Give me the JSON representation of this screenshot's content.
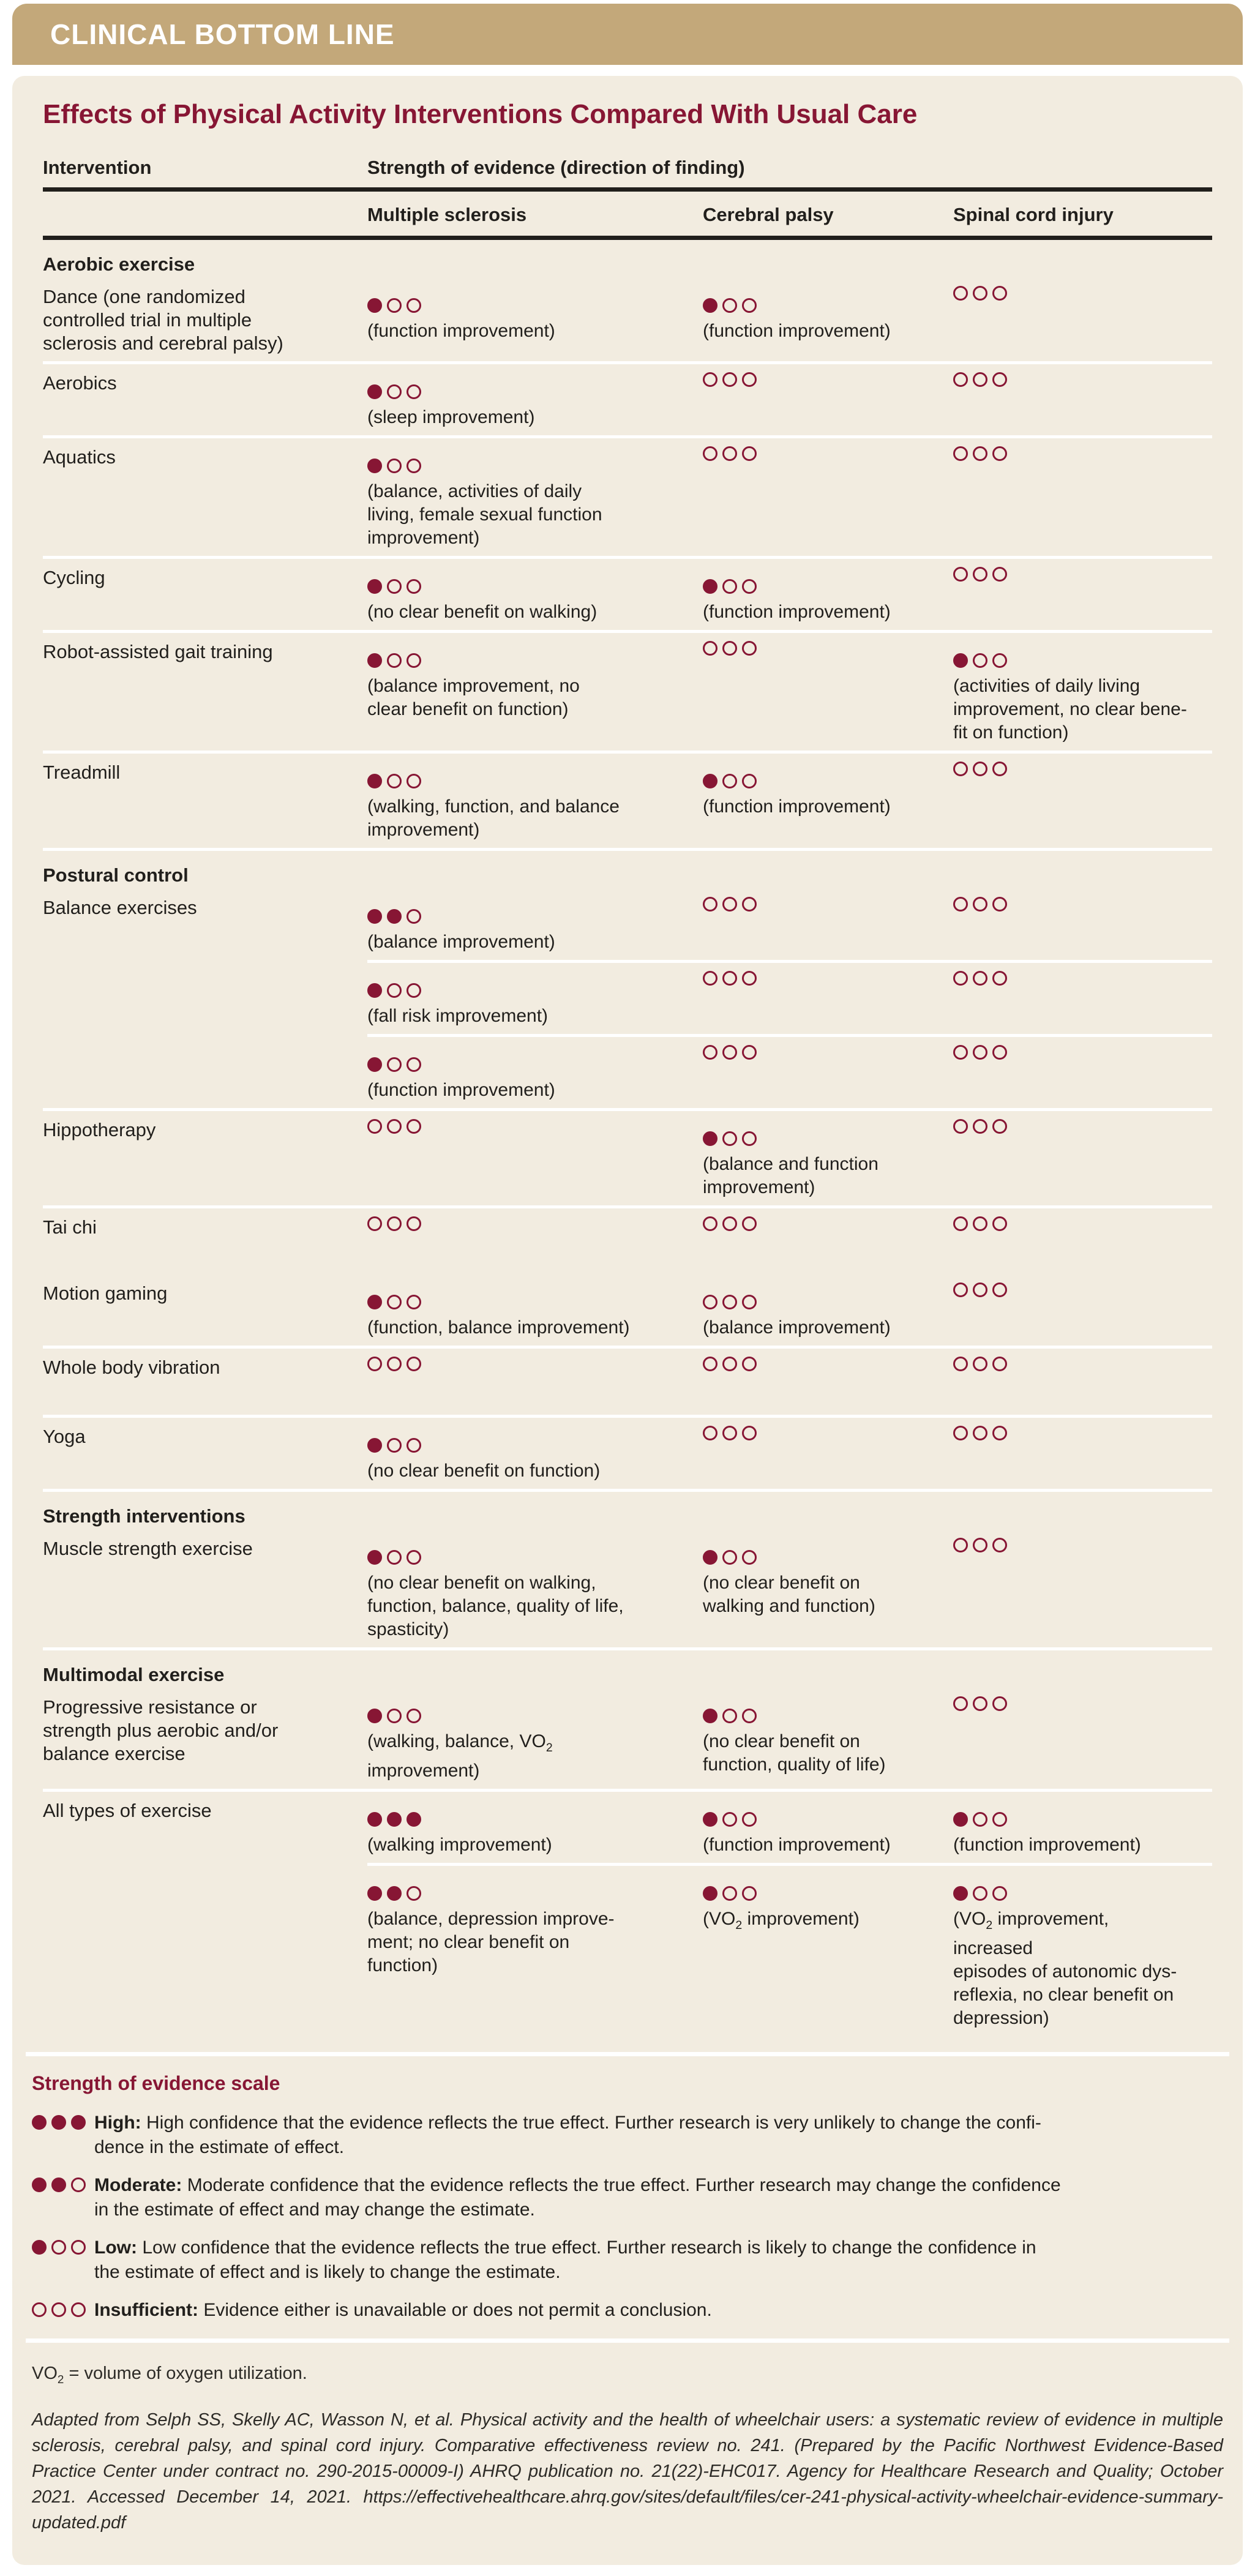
{
  "banner": {
    "title": "CLINICAL BOTTOM LINE"
  },
  "table": {
    "title": "Effects of Physical Activity Interventions Compared With Usual Care",
    "col1_header": "Intervention",
    "evidence_header": "Strength of evidence (direction of finding)",
    "columns": [
      "Multiple sclerosis",
      "Cerebral palsy",
      "Spinal cord injury"
    ],
    "rows": [
      {
        "type": "section",
        "sep": "none",
        "label": "Aerobic exercise"
      },
      {
        "type": "row",
        "sep": "none",
        "label": "Dance (one randomized\ncontrolled trial in multiple\nsclerosis and cerebral palsy)",
        "cells": [
          {
            "filled": 1,
            "caption": "(function improvement)"
          },
          {
            "filled": 1,
            "caption": "(function improvement)"
          },
          {
            "filled": 0,
            "caption": ""
          }
        ]
      },
      {
        "type": "row",
        "sep": "full",
        "label": "Aerobics",
        "cells": [
          {
            "filled": 1,
            "caption": "(sleep improvement)"
          },
          {
            "filled": 0,
            "caption": ""
          },
          {
            "filled": 0,
            "caption": ""
          }
        ]
      },
      {
        "type": "row",
        "sep": "full",
        "label": "Aquatics",
        "cells": [
          {
            "filled": 1,
            "caption": "(balance, activities of daily\nliving, female sexual function\nimprovement)"
          },
          {
            "filled": 0,
            "caption": ""
          },
          {
            "filled": 0,
            "caption": ""
          }
        ]
      },
      {
        "type": "row",
        "sep": "full",
        "label": "Cycling",
        "cells": [
          {
            "filled": 1,
            "caption": "(no clear benefit on walking)"
          },
          {
            "filled": 1,
            "caption": "(function improvement)"
          },
          {
            "filled": 0,
            "caption": ""
          }
        ]
      },
      {
        "type": "row",
        "sep": "full",
        "label": "Robot-assisted gait training",
        "cells": [
          {
            "filled": 1,
            "caption": "(balance improvement, no\nclear benefit on function)"
          },
          {
            "filled": 0,
            "caption": ""
          },
          {
            "filled": 1,
            "caption": "(activities of daily living\nimprovement, no clear bene-\nfit on function)"
          }
        ]
      },
      {
        "type": "row",
        "sep": "full",
        "label": "Treadmill",
        "cells": [
          {
            "filled": 1,
            "caption": "(walking, function, and balance\nimprovement)"
          },
          {
            "filled": 1,
            "caption": "(function improvement)"
          },
          {
            "filled": 0,
            "caption": ""
          }
        ]
      },
      {
        "type": "section",
        "sep": "full",
        "label": "Postural control"
      },
      {
        "type": "row",
        "sep": "none",
        "label": "Balance exercises",
        "cells": [
          {
            "filled": 2,
            "caption": "(balance improvement)"
          },
          {
            "filled": 0,
            "caption": ""
          },
          {
            "filled": 0,
            "caption": ""
          }
        ]
      },
      {
        "type": "row",
        "sep": "indent",
        "label": "",
        "cells": [
          {
            "filled": 1,
            "caption": "(fall risk improvement)"
          },
          {
            "filled": 0,
            "caption": ""
          },
          {
            "filled": 0,
            "caption": ""
          }
        ]
      },
      {
        "type": "row",
        "sep": "indent",
        "label": "",
        "cells": [
          {
            "filled": 1,
            "caption": "(function improvement)"
          },
          {
            "filled": 0,
            "caption": ""
          },
          {
            "filled": 0,
            "caption": ""
          }
        ]
      },
      {
        "type": "row",
        "sep": "full",
        "label": "Hippotherapy",
        "cells": [
          {
            "filled": 0,
            "caption": ""
          },
          {
            "filled": 1,
            "caption": "(balance and function\nimprovement)"
          },
          {
            "filled": 0,
            "caption": ""
          }
        ]
      },
      {
        "type": "row",
        "sep": "full",
        "label": "Tai chi",
        "cells": [
          {
            "filled": 0,
            "caption": ""
          },
          {
            "filled": 0,
            "caption": ""
          },
          {
            "filled": 0,
            "caption": ""
          }
        ]
      },
      {
        "type": "row",
        "sep": "none",
        "label": "Motion gaming",
        "cells": [
          {
            "filled": 1,
            "caption": "(function, balance improvement)"
          },
          {
            "filled": 0,
            "caption": "(balance improvement)"
          },
          {
            "filled": 0,
            "caption": ""
          }
        ]
      },
      {
        "type": "row",
        "sep": "full",
        "label": "Whole body vibration",
        "cells": [
          {
            "filled": 0,
            "caption": ""
          },
          {
            "filled": 0,
            "caption": ""
          },
          {
            "filled": 0,
            "caption": ""
          }
        ]
      },
      {
        "type": "row",
        "sep": "full",
        "label": "Yoga",
        "cells": [
          {
            "filled": 1,
            "caption": "(no clear benefit on function)"
          },
          {
            "filled": 0,
            "caption": ""
          },
          {
            "filled": 0,
            "caption": ""
          }
        ]
      },
      {
        "type": "section",
        "sep": "full",
        "label": "Strength interventions"
      },
      {
        "type": "row",
        "sep": "none",
        "label": "Muscle strength exercise",
        "cells": [
          {
            "filled": 1,
            "caption": "(no clear benefit on walking,\nfunction, balance, quality of life,\nspasticity)"
          },
          {
            "filled": 1,
            "caption": "(no clear benefit on\nwalking and function)"
          },
          {
            "filled": 0,
            "caption": ""
          }
        ]
      },
      {
        "type": "section",
        "sep": "full",
        "label": "Multimodal exercise"
      },
      {
        "type": "row",
        "sep": "none",
        "label": "Progressive resistance or\nstrength plus aerobic and/or\nbalance exercise",
        "cells": [
          {
            "filled": 1,
            "caption": "(walking, balance, VO2\nimprovement)",
            "sub2": true
          },
          {
            "filled": 1,
            "caption": "(no clear benefit on\nfunction, quality of life)"
          },
          {
            "filled": 0,
            "caption": ""
          }
        ]
      },
      {
        "type": "row",
        "sep": "full",
        "label": "All types of exercise",
        "cells": [
          {
            "filled": 3,
            "caption": "(walking improvement)"
          },
          {
            "filled": 1,
            "caption": "(function improvement)"
          },
          {
            "filled": 1,
            "caption": "(function improvement)"
          }
        ]
      },
      {
        "type": "row",
        "sep": "indent",
        "label": "",
        "cells": [
          {
            "filled": 2,
            "caption": "(balance, depression improve-\nment; no clear benefit on\nfunction)"
          },
          {
            "filled": 1,
            "caption": "(VO2 improvement)",
            "sub2": true
          },
          {
            "filled": 1,
            "caption": "(VO2 improvement, increased\nepisodes of autonomic dys-\nreflexia, no clear benefit on\ndepression)",
            "sub2": true
          }
        ]
      }
    ]
  },
  "legend": {
    "title": "Strength of evidence scale",
    "items": [
      {
        "filled": 3,
        "term": "High:",
        "text": "High confidence that the evidence reflects the true effect. Further research is very unlikely to change the confi-\ndence in the estimate of effect."
      },
      {
        "filled": 2,
        "term": "Moderate:",
        "text": "Moderate confidence that the evidence reflects the true effect. Further research may change the confidence\nin the estimate of effect and may change the estimate."
      },
      {
        "filled": 1,
        "term": "Low:",
        "text": "Low confidence that the evidence reflects the true effect. Further research is likely to change the confidence in\nthe estimate of effect and is likely to change the estimate."
      },
      {
        "filled": 0,
        "term": "Insufficient:",
        "text": "Evidence either is unavailable or does not permit a conclusion."
      }
    ]
  },
  "footnotes": {
    "vo2": "VO2 = volume of oxygen utilization.",
    "citation": "Adapted from Selph SS, Skelly AC, Wasson N, et al. Physical activity and the health of wheelchair users: a systematic review of evidence in multiple sclerosis, cerebral palsy, and spinal cord injury. Comparative effectiveness review no. 241. (Prepared by the Pacific Northwest Evidence-Based Practice Center under contract no. 290-2015-00009-I) AHRQ publication no. 21(22)-EHC017. Agency for Healthcare Research and Quality; October 2021. Accessed December 14, 2021. https://effectivehealthcare.ahrq.gov/sites/default/files/cer-241-physical-activity-wheelchair-evidence-summary-updated.pdf"
  },
  "colors": {
    "banner_tan": "#c3a87a",
    "panel_cream": "#f2ece0",
    "maroon": "#871634",
    "ink": "#211f1c"
  }
}
